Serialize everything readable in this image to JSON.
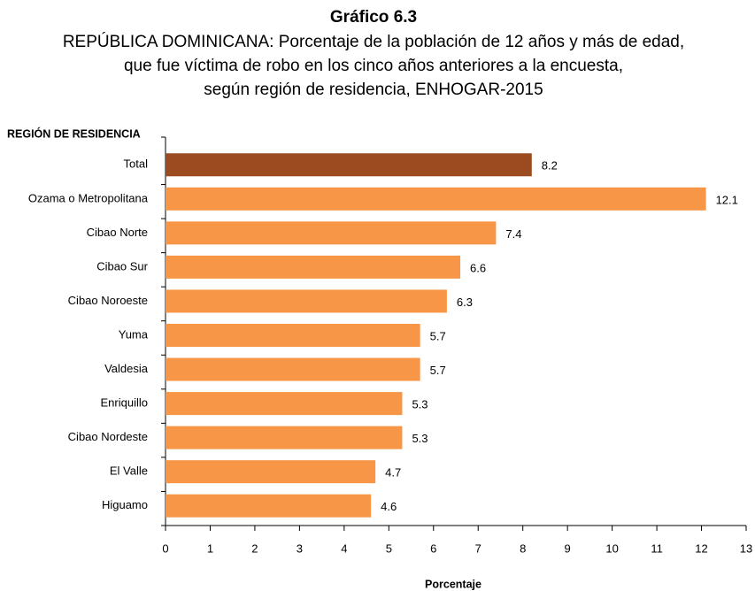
{
  "chart_data": {
    "type": "barh",
    "title": "Gráfico 6.3",
    "subtitle": [
      "REPÚBLICA DOMINICANA: Porcentaje de la población de 12 años y más de edad,",
      "que fue víctima de robo en los cinco años anteriores a la encuesta,",
      "según región de residencia, ENHOGAR-2015"
    ],
    "category_axis_label": "REGIÓN DE RESIDENCIA",
    "xlabel": "Porcentaje",
    "categories": [
      "Total",
      "Ozama o Metropolitana",
      "Cibao Norte",
      "Cibao Sur",
      "Cibao Noroeste",
      "Yuma",
      "Valdesia",
      "Enriquillo",
      "Cibao Nordeste",
      "El Valle",
      "Higuamo"
    ],
    "values": [
      8.2,
      12.1,
      7.4,
      6.6,
      6.3,
      5.7,
      5.7,
      5.3,
      5.3,
      4.7,
      4.6
    ],
    "colors": [
      "#9c4a1f",
      "#f79646",
      "#f79646",
      "#f79646",
      "#f79646",
      "#f79646",
      "#f79646",
      "#f79646",
      "#f79646",
      "#f79646",
      "#f79646"
    ],
    "xlim": [
      0,
      13
    ],
    "xticks": [
      0,
      1,
      2,
      3,
      4,
      5,
      6,
      7,
      8,
      9,
      10,
      11,
      12,
      13
    ],
    "grid": false
  }
}
